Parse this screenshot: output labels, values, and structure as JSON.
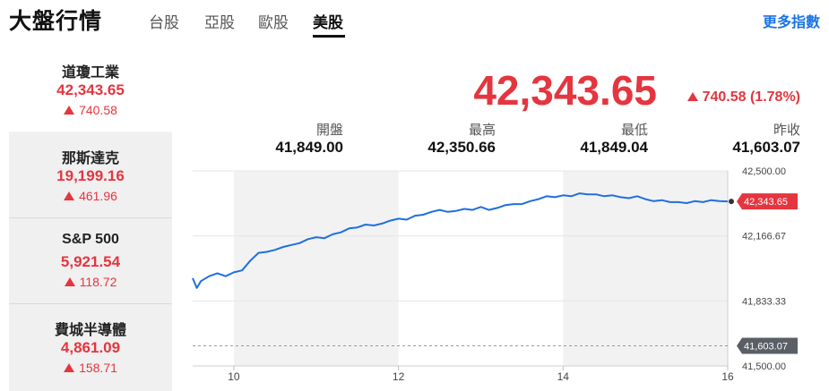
{
  "header": {
    "title": "大盤行情",
    "tabs": [
      {
        "label": "台股"
      },
      {
        "label": "亞股"
      },
      {
        "label": "歐股"
      },
      {
        "label": "美股"
      }
    ],
    "active_tab": "美股",
    "more_link": "更多指數"
  },
  "sidebar": {
    "items": [
      {
        "name": "道瓊工業",
        "price": "42,343.65",
        "change": "740.58"
      },
      {
        "name": "那斯達克",
        "price": "19,199.16",
        "change": "461.96"
      },
      {
        "name": "S&P 500",
        "price": "5,921.54",
        "change": "118.72"
      },
      {
        "name": "費城半導體",
        "price": "4,861.09",
        "change": "158.71"
      }
    ]
  },
  "quote": {
    "price": "42,343.65",
    "change": "740.58 (1.78%)",
    "stats": [
      {
        "label": "開盤",
        "value": "41,849.00"
      },
      {
        "label": "最高",
        "value": "42,350.66"
      },
      {
        "label": "最低",
        "value": "41,849.04"
      },
      {
        "label": "昨收",
        "value": "41,603.07"
      }
    ]
  },
  "colors": {
    "up": "#e5353f",
    "line": "#1f6fe0",
    "prev_close_tag": "#5a5f66",
    "accent_link": "#1a73e8"
  },
  "chart_data": {
    "type": "line",
    "x_ticks": [
      "10",
      "12",
      "14",
      "16"
    ],
    "y_ticks": [
      "42,500.00",
      "42,166.67",
      "41,833.33",
      "41,500.00"
    ],
    "ylim": [
      41500,
      42500
    ],
    "last_price_label": "42,343.65",
    "last_price": 42343.65,
    "prev_close_label": "41,603.07",
    "prev_close": 41603.07,
    "xlim": [
      9.5,
      16.0
    ],
    "series": [
      {
        "x": [
          9.5,
          9.55,
          9.6,
          9.7,
          9.8,
          9.9,
          10.0,
          10.1,
          10.2,
          10.3,
          10.4,
          10.5,
          10.6,
          10.7,
          10.8,
          10.9,
          11.0,
          11.1,
          11.2,
          11.3,
          11.4,
          11.5,
          11.6,
          11.7,
          11.8,
          11.9,
          12.0,
          12.1,
          12.2,
          12.3,
          12.4,
          12.5,
          12.6,
          12.7,
          12.8,
          12.9,
          13.0,
          13.1,
          13.2,
          13.3,
          13.4,
          13.5,
          13.6,
          13.7,
          13.8,
          13.9,
          14.0,
          14.1,
          14.2,
          14.3,
          14.4,
          14.5,
          14.6,
          14.7,
          14.8,
          14.9,
          15.0,
          15.1,
          15.2,
          15.3,
          15.4,
          15.5,
          15.6,
          15.7,
          15.8,
          15.9,
          16.0
        ],
        "y": [
          41950,
          41900,
          41935,
          41960,
          41975,
          41960,
          41980,
          41990,
          42040,
          42080,
          42085,
          42095,
          42110,
          42120,
          42130,
          42150,
          42160,
          42155,
          42175,
          42185,
          42205,
          42210,
          42225,
          42220,
          42230,
          42245,
          42255,
          42250,
          42270,
          42275,
          42290,
          42300,
          42290,
          42295,
          42305,
          42300,
          42315,
          42300,
          42310,
          42325,
          42330,
          42330,
          42345,
          42355,
          42370,
          42365,
          42375,
          42370,
          42385,
          42380,
          42380,
          42370,
          42375,
          42365,
          42360,
          42370,
          42355,
          42345,
          42350,
          42340,
          42340,
          42335,
          42345,
          42340,
          42350,
          42345,
          42343.65
        ]
      }
    ]
  }
}
